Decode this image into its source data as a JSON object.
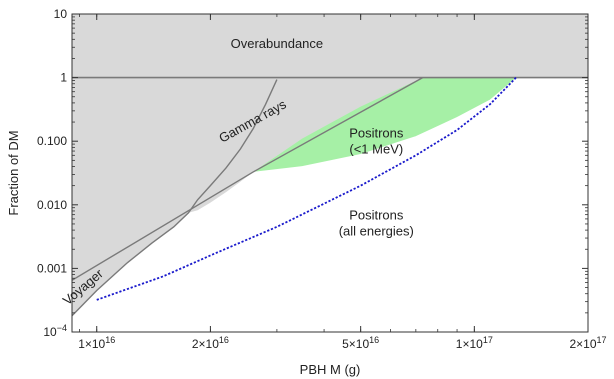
{
  "chart_data": {
    "type": "area",
    "title": "",
    "xlabel": "PBH M (g)",
    "ylabel": "Fraction of DM",
    "x_scale": "log",
    "y_scale": "log",
    "xlim": [
      8600000000000000.0,
      2e+17
    ],
    "ylim": [
      0.0001,
      10
    ],
    "grid": false,
    "legend": "none",
    "x_ticks": [
      {
        "value": 1e+16,
        "label": "1×10",
        "exp": "16"
      },
      {
        "value": 2e+16,
        "label": "2×10",
        "exp": "16"
      },
      {
        "value": 5e+16,
        "label": "5×10",
        "exp": "16"
      },
      {
        "value": 1e+17,
        "label": "1×10",
        "exp": "17"
      },
      {
        "value": 2e+17,
        "label": "2×10",
        "exp": "17"
      }
    ],
    "y_ticks": [
      {
        "value": 10,
        "label": "10"
      },
      {
        "value": 1,
        "label": "1"
      },
      {
        "value": 0.1,
        "label": "0.100"
      },
      {
        "value": 0.01,
        "label": "0.010"
      },
      {
        "value": 0.001,
        "label": "0.001"
      },
      {
        "value": 0.0001,
        "label": "10",
        "exp": "−4"
      }
    ],
    "colors": {
      "excluded_fill": "#d9d9d9",
      "constraint_line": "#7a7a7a",
      "positron_low_fill": "#a6f0a6",
      "positron_all_line": "#1a1acc"
    },
    "regions": [
      {
        "name": "Overabundance",
        "label": "Overabundance",
        "label_at": [
          3e+16,
          2.9
        ],
        "points": [
          [
            8600000000000000.0,
            1
          ],
          [
            2e+17,
            1
          ],
          [
            2e+17,
            10
          ],
          [
            8600000000000000.0,
            10
          ]
        ]
      },
      {
        "name": "Positrons (<1 MeV)",
        "label_lines": [
          "Positrons",
          "(<1 MeV)"
        ],
        "label_at": [
          5.5e+16,
          0.115
        ],
        "points": [
          [
            2.6e+16,
            0.033
          ],
          [
            3.5e+16,
            0.0405
          ],
          [
            5e+16,
            0.063
          ],
          [
            7e+16,
            0.12
          ],
          [
            9e+16,
            0.24
          ],
          [
            1.1e+17,
            0.45
          ],
          [
            1.29e+17,
            1.0
          ],
          [
            7.3e+16,
            1.0
          ],
          [
            5e+16,
            0.35
          ],
          [
            3.5e+16,
            0.11
          ],
          [
            2.6e+16,
            0.033
          ]
        ]
      }
    ],
    "series": [
      {
        "name": "Voyager",
        "label_at": [
          9350000000000000.0,
          0.00045
        ],
        "label_angle": -40,
        "values": [
          [
            8600000000000000.0,
            0.00018
          ],
          [
            1e+16,
            0.00045
          ],
          [
            1.2e+16,
            0.0012
          ],
          [
            1.4e+16,
            0.0025
          ],
          [
            1.6e+16,
            0.0045
          ],
          [
            1.75e+16,
            0.0075
          ],
          [
            1.85e+16,
            0.012
          ],
          [
            2e+16,
            0.02
          ],
          [
            2.2e+16,
            0.038
          ],
          [
            2.4e+16,
            0.075
          ],
          [
            2.6e+16,
            0.16
          ],
          [
            2.8e+16,
            0.38
          ],
          [
            3e+16,
            0.93
          ]
        ]
      },
      {
        "name": "Gamma rays",
        "label_at": [
          2.62e+16,
          0.18
        ],
        "label_angle": -29,
        "values": [
          [
            8600000000000000.0,
            0.00065
          ],
          [
            2.6e+16,
            0.033
          ],
          [
            7.3e+16,
            1.0
          ]
        ]
      },
      {
        "name": "Positrons (all energies)",
        "label_lines": [
          "Positrons",
          "(all energies)"
        ],
        "label_at": [
          5.5e+16,
          0.0059
        ],
        "values": [
          [
            1e+16,
            0.00032
          ],
          [
            1.5e+16,
            0.00075
          ],
          [
            2e+16,
            0.0016
          ],
          [
            3e+16,
            0.0045
          ],
          [
            5e+16,
            0.02
          ],
          [
            7e+16,
            0.06
          ],
          [
            9e+16,
            0.15
          ],
          [
            1.1e+17,
            0.38
          ],
          [
            1.29e+17,
            1.0
          ]
        ]
      }
    ]
  }
}
